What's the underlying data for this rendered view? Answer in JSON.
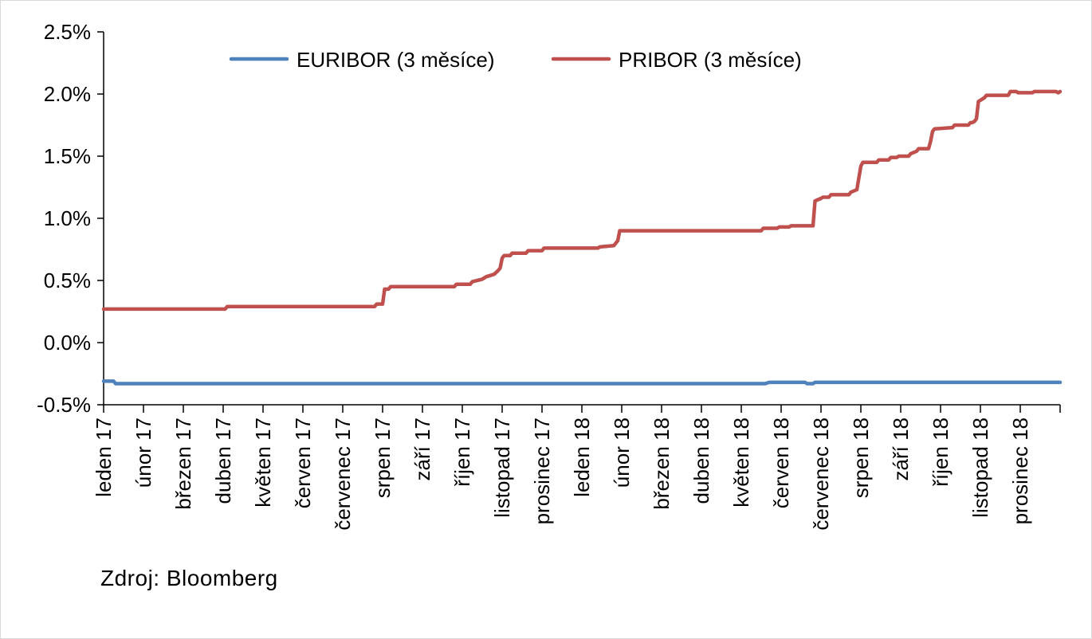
{
  "chart_data": {
    "type": "line",
    "title": "",
    "xlabel": "",
    "ylabel": "",
    "ylim": [
      -0.5,
      2.5
    ],
    "y_ticks": [
      -0.5,
      0.0,
      0.5,
      1.0,
      1.5,
      2.0,
      2.5
    ],
    "y_tick_labels": [
      "-0.5%",
      "0.0%",
      "0.5%",
      "1.0%",
      "1.5%",
      "2.0%",
      "2.5%"
    ],
    "y_unit": "%",
    "x_tick_labels": [
      "leden 17",
      "únor 17",
      "březen 17",
      "duben 17",
      "květen 17",
      "červen 17",
      "červenec 17",
      "srpen 17",
      "září 17",
      "říjen 17",
      "listopad 17",
      "prosinec 17",
      "leden 18",
      "únor 18",
      "březen 18",
      "duben 18",
      "květen 18",
      "červen 18",
      "červenec 18",
      "srpen 18",
      "září 18",
      "říjen 18",
      "listopad 18",
      "prosinec 18"
    ],
    "x_range_months": [
      0,
      24
    ],
    "grid": false,
    "legend_position": "top",
    "series": [
      {
        "name": "EURIBOR (3 měsíce)",
        "color": "#4F81BD",
        "x": [
          0,
          0.25,
          0.3,
          16.6,
          16.7,
          17.6,
          17.65,
          17.8,
          17.85,
          24
        ],
        "values": [
          -0.31,
          -0.31,
          -0.33,
          -0.33,
          -0.32,
          -0.32,
          -0.33,
          -0.33,
          -0.32,
          -0.32
        ]
      },
      {
        "name": "PRIBOR (3 měsíce)",
        "color": "#C0504D",
        "x": [
          0,
          3.05,
          3.1,
          6.8,
          6.85,
          7.0,
          7.05,
          7.15,
          7.2,
          8.8,
          8.85,
          9.2,
          9.25,
          9.5,
          9.6,
          9.8,
          9.9,
          9.95,
          10.0,
          10.05,
          10.2,
          10.25,
          10.6,
          10.65,
          11.0,
          11.05,
          12.4,
          12.45,
          12.8,
          12.9,
          12.95,
          16.5,
          16.55,
          16.9,
          16.95,
          17.2,
          17.25,
          17.8,
          17.85,
          18.0,
          18.05,
          18.2,
          18.25,
          18.7,
          18.75,
          18.9,
          19.0,
          19.05,
          19.4,
          19.45,
          19.7,
          19.75,
          19.9,
          19.95,
          20.2,
          20.25,
          20.4,
          20.45,
          20.7,
          20.75,
          20.8,
          20.85,
          21.3,
          21.35,
          21.7,
          21.75,
          21.8,
          21.85,
          21.9,
          21.95,
          22.1,
          22.15,
          22.7,
          22.75,
          22.9,
          22.95,
          23.3,
          23.35,
          23.9,
          23.95,
          24
        ],
        "values": [
          0.27,
          0.27,
          0.29,
          0.29,
          0.31,
          0.31,
          0.43,
          0.43,
          0.45,
          0.45,
          0.47,
          0.47,
          0.49,
          0.51,
          0.53,
          0.55,
          0.58,
          0.6,
          0.68,
          0.7,
          0.7,
          0.72,
          0.72,
          0.74,
          0.74,
          0.76,
          0.76,
          0.77,
          0.78,
          0.82,
          0.9,
          0.9,
          0.92,
          0.92,
          0.93,
          0.93,
          0.94,
          0.94,
          1.14,
          1.16,
          1.17,
          1.17,
          1.19,
          1.19,
          1.21,
          1.23,
          1.42,
          1.45,
          1.45,
          1.47,
          1.47,
          1.49,
          1.49,
          1.5,
          1.5,
          1.52,
          1.54,
          1.56,
          1.56,
          1.62,
          1.7,
          1.72,
          1.73,
          1.75,
          1.75,
          1.77,
          1.77,
          1.78,
          1.8,
          1.94,
          1.97,
          1.99,
          1.99,
          2.02,
          2.02,
          2.01,
          2.01,
          2.02,
          2.02,
          2.01,
          2.02
        ]
      }
    ]
  },
  "footer": {
    "source": "Zdroj: Bloomberg"
  }
}
